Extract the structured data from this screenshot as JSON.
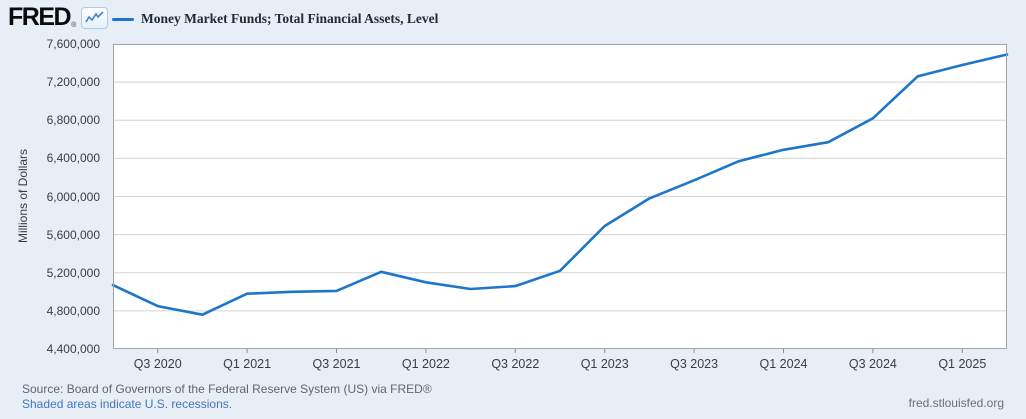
{
  "header": {
    "logo_text": "FRED",
    "registered_mark": "®",
    "legend_label": "Money Market Funds; Total Financial Assets, Level"
  },
  "chart_data": {
    "type": "line",
    "title": "Money Market Funds; Total Financial Assets, Level",
    "ylabel": "Millions of Dollars",
    "ylim": [
      4400000,
      7600000
    ],
    "ytick_step": 400000,
    "ytick_labels": [
      "7,600,000",
      "7,200,000",
      "6,800,000",
      "6,400,000",
      "6,000,000",
      "5,600,000",
      "5,200,000",
      "4,800,000",
      "4,400,000"
    ],
    "x": [
      "2020 Q2",
      "2020 Q3",
      "2020 Q4",
      "2021 Q1",
      "2021 Q2",
      "2021 Q3",
      "2021 Q4",
      "2022 Q1",
      "2022 Q2",
      "2022 Q3",
      "2022 Q4",
      "2023 Q1",
      "2023 Q2",
      "2023 Q3",
      "2023 Q4",
      "2024 Q1",
      "2024 Q2",
      "2024 Q3",
      "2024 Q4",
      "2025 Q1",
      "2025 Q2"
    ],
    "values": [
      5070000,
      4850000,
      4760000,
      4980000,
      5000000,
      5010000,
      5210000,
      5100000,
      5030000,
      5060000,
      5220000,
      5690000,
      5980000,
      6170000,
      6370000,
      6490000,
      6570000,
      6820000,
      7260000,
      7380000,
      7490000
    ],
    "xtick_labels": [
      "Q3 2020",
      "Q1 2021",
      "Q3 2021",
      "Q1 2022",
      "Q3 2022",
      "Q1 2023",
      "Q3 2023",
      "Q1 2024",
      "Q3 2024",
      "Q1 2025"
    ],
    "xtick_indices": [
      1,
      3,
      5,
      7,
      9,
      11,
      13,
      15,
      17,
      19
    ],
    "grid": true,
    "legend_position": "top-left"
  },
  "footer": {
    "source_line": "Source: Board of Governors of the Federal Reserve System (US) via FRED®",
    "recession_note": "Shaded areas indicate U.S. recessions.",
    "site_url": "fred.stlouisfed.org"
  },
  "colors": {
    "background": "#e7eef6",
    "plot_background": "#ffffff",
    "line": "#1d76c9",
    "gridline": "#d5d5d5",
    "plot_border": "#a3a3a3",
    "tick": "#8a8a8a",
    "link": "#4677b8",
    "text_muted": "#62676e"
  }
}
